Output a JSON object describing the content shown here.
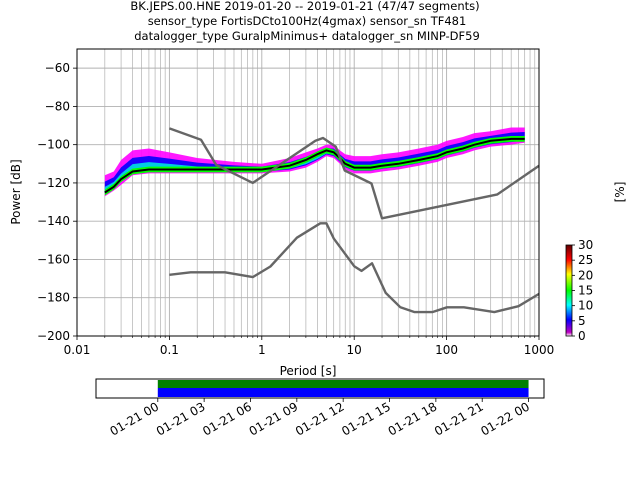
{
  "header": {
    "line1": "BK.JEPS.00.HNE   2019-01-20 -- 2019-01-21  (47/47 segments)",
    "line2": "sensor_type FortisDCto100Hz(4gmax) sensor_sn TF481",
    "line3": "datalogger_type GuralpMinimus+ datalogger_sn MINP-DF59"
  },
  "colors": {
    "model_line": "#666666",
    "mode_line": "#000000",
    "grid": "#b0b0b0",
    "coverage_data": "#0000ff",
    "coverage_gaps": "#008000"
  },
  "chart_data": [
    {
      "type": "heatmap",
      "xlabel": "Period [s]",
      "ylabel": "Power [dB]",
      "x_scale": "log",
      "xlim": [
        0.01,
        1000
      ],
      "ylim": [
        -200,
        -50
      ],
      "grid": true,
      "x_ticks": [
        {
          "value": 0.01,
          "label": "0.01"
        },
        {
          "value": 0.1,
          "label": "0.1"
        },
        {
          "value": 1,
          "label": "1"
        },
        {
          "value": 10,
          "label": "10"
        },
        {
          "value": 100,
          "label": "100"
        },
        {
          "value": 1000,
          "label": "1000"
        }
      ],
      "y_ticks": [
        {
          "value": -60,
          "label": "−60"
        },
        {
          "value": -80,
          "label": "−80"
        },
        {
          "value": -100,
          "label": "−100"
        },
        {
          "value": -120,
          "label": "−120"
        },
        {
          "value": -140,
          "label": "−140"
        },
        {
          "value": -160,
          "label": "−160"
        },
        {
          "value": -180,
          "label": "−180"
        },
        {
          "value": -200,
          "label": "−200"
        }
      ],
      "noise_model_high": {
        "x": [
          0.1,
          0.22,
          0.32,
          0.8,
          3.8,
          4.6,
          6.3,
          7.9,
          15.4,
          20,
          354.8,
          1000
        ],
        "y": [
          -91.5,
          -97.4,
          -110.5,
          -120,
          -98,
          -96.5,
          -101,
          -113.5,
          -120.3,
          -138.5,
          -126,
          -111
        ]
      },
      "noise_model_low": {
        "x": [
          0.1,
          0.17,
          0.4,
          0.8,
          1.24,
          2.4,
          4.3,
          5,
          6,
          10,
          12,
          15.6,
          21.9,
          31.6,
          45,
          70,
          101,
          154,
          328,
          600,
          1000
        ],
        "y": [
          -168,
          -166.7,
          -166.7,
          -169.2,
          -163.7,
          -148.6,
          -141.1,
          -141.1,
          -149,
          -163.5,
          -166,
          -162,
          -177.5,
          -185,
          -187.5,
          -187.5,
          -185,
          -185,
          -187.5,
          -184.4,
          -178
        ]
      },
      "mode": {
        "x": [
          0.02,
          0.025,
          0.03,
          0.04,
          0.06,
          0.1,
          0.2,
          0.5,
          1,
          2,
          3,
          4,
          5,
          6,
          7,
          8,
          10,
          15,
          20,
          30,
          50,
          80,
          100,
          150,
          200,
          300,
          500,
          700
        ],
        "y": [
          -125,
          -122,
          -118,
          -114,
          -113,
          -113,
          -113,
          -113,
          -113,
          -111,
          -108,
          -105,
          -103,
          -104,
          -107,
          -110,
          -112,
          -112,
          -111,
          -110,
          -108,
          -106,
          -104,
          -102,
          -100,
          -98,
          -97,
          -97
        ]
      },
      "band": {
        "x": [
          0.02,
          0.025,
          0.03,
          0.04,
          0.06,
          0.1,
          0.2,
          0.5,
          1,
          2,
          3,
          4,
          5,
          6,
          7,
          8,
          10,
          15,
          20,
          30,
          50,
          80,
          100,
          150,
          200,
          300,
          500,
          700
        ],
        "low": [
          -127,
          -124,
          -121,
          -116,
          -115,
          -115,
          -115,
          -115,
          -115,
          -114,
          -112,
          -109,
          -106,
          -107,
          -110,
          -113,
          -115,
          -115,
          -114,
          -113,
          -111,
          -109,
          -107,
          -105,
          -103,
          -101,
          -100,
          -99
        ],
        "high": [
          -116,
          -114,
          -108,
          -103,
          -102,
          -104,
          -107,
          -109,
          -110,
          -107,
          -104,
          -102,
          -100,
          -100,
          -103,
          -105,
          -106,
          -106,
          -105,
          -104,
          -102,
          -100,
          -98,
          -96,
          -94,
          -93,
          -91,
          -91
        ]
      },
      "colorbar": {
        "label": "[%]",
        "range": [
          0,
          30
        ],
        "ticks": [
          0,
          5,
          10,
          15,
          20,
          25,
          30
        ]
      }
    },
    {
      "type": "bar",
      "title": "",
      "x_ticks": [
        "01-21 00",
        "01-21 03",
        "01-21 06",
        "01-21 09",
        "01-21 12",
        "01-21 15",
        "01-21 18",
        "01-21 21",
        "01-22 00"
      ],
      "xlim": [
        "2019-01-20 20:00",
        "2019-01-22 01:00"
      ],
      "data_coverage": {
        "start": "2019-01-21 00:00",
        "end": "2019-01-22 00:00"
      },
      "gap_coverage": {
        "start": "2019-01-21 00:00",
        "end": "2019-01-22 00:00"
      }
    }
  ]
}
